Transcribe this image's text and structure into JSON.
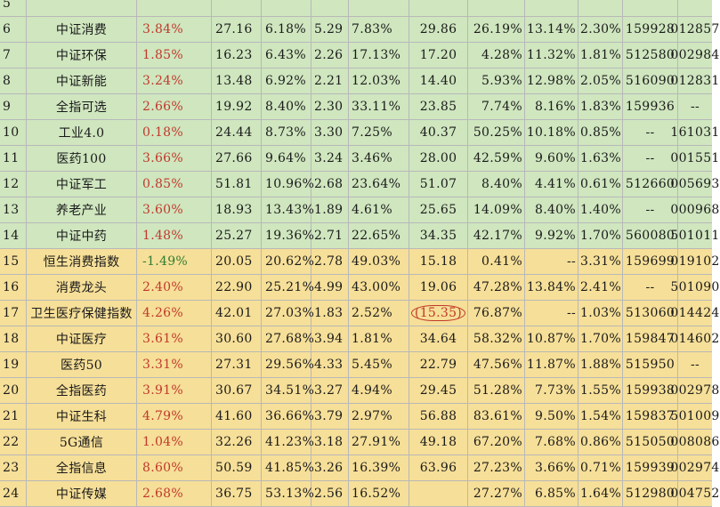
{
  "rows": [
    {
      "idx": "5",
      "name": "",
      "chg": "",
      "c3": "",
      "c4": "",
      "c5": "",
      "c6": "",
      "c7": "",
      "c8": "",
      "c9": "",
      "c10": "",
      "c11": "",
      "c12": "",
      "tone": "green",
      "chg_color": "red"
    },
    {
      "idx": "6",
      "name": "中证消费",
      "chg": "3.84%",
      "c3": "27.16",
      "c4": "6.18%",
      "c5": "5.29",
      "c6": "7.83%",
      "c7": "29.86",
      "c8": "26.19%",
      "c9": "13.14%",
      "c10": "2.30%",
      "c11": "159928",
      "c12": "012857",
      "tone": "green",
      "chg_color": "red"
    },
    {
      "idx": "7",
      "name": "中证环保",
      "chg": "1.85%",
      "c3": "16.23",
      "c4": "6.43%",
      "c5": "2.26",
      "c6": "17.13%",
      "c7": "17.20",
      "c8": "4.28%",
      "c9": "11.32%",
      "c10": "1.81%",
      "c11": "512580",
      "c12": "002984",
      "tone": "green",
      "chg_color": "red"
    },
    {
      "idx": "8",
      "name": "中证新能",
      "chg": "3.24%",
      "c3": "13.48",
      "c4": "6.92%",
      "c5": "2.21",
      "c6": "12.03%",
      "c7": "14.40",
      "c8": "5.93%",
      "c9": "12.98%",
      "c10": "2.05%",
      "c11": "516090",
      "c12": "012831",
      "tone": "green",
      "chg_color": "red"
    },
    {
      "idx": "9",
      "name": "全指可选",
      "chg": "2.66%",
      "c3": "19.92",
      "c4": "8.40%",
      "c5": "2.30",
      "c6": "33.11%",
      "c7": "23.85",
      "c8": "7.74%",
      "c9": "8.16%",
      "c10": "1.83%",
      "c11": "159936",
      "c12": "--",
      "tone": "green",
      "chg_color": "red"
    },
    {
      "idx": "10",
      "name": "工业4.0",
      "chg": "0.18%",
      "c3": "24.44",
      "c4": "8.73%",
      "c5": "3.30",
      "c6": "7.25%",
      "c7": "40.37",
      "c8": "50.25%",
      "c9": "10.18%",
      "c10": "0.85%",
      "c11": "--",
      "c12": "161031",
      "tone": "green",
      "chg_color": "red"
    },
    {
      "idx": "11",
      "name": "医药100",
      "chg": "3.66%",
      "c3": "27.66",
      "c4": "9.64%",
      "c5": "3.24",
      "c6": "3.46%",
      "c7": "28.00",
      "c8": "42.59%",
      "c9": "9.60%",
      "c10": "1.63%",
      "c11": "--",
      "c12": "001551",
      "tone": "green",
      "chg_color": "red"
    },
    {
      "idx": "12",
      "name": "中证军工",
      "chg": "0.85%",
      "c3": "51.81",
      "c4": "10.96%",
      "c5": "2.68",
      "c6": "23.64%",
      "c7": "51.07",
      "c8": "8.40%",
      "c9": "4.41%",
      "c10": "0.61%",
      "c11": "512660",
      "c12": "005693",
      "tone": "green",
      "chg_color": "red"
    },
    {
      "idx": "13",
      "name": "养老产业",
      "chg": "3.60%",
      "c3": "18.93",
      "c4": "13.43%",
      "c5": "1.89",
      "c6": "4.61%",
      "c7": "25.65",
      "c8": "14.09%",
      "c9": "8.40%",
      "c10": "1.40%",
      "c11": "--",
      "c12": "000968",
      "tone": "green",
      "chg_color": "red"
    },
    {
      "idx": "14",
      "name": "中证中药",
      "chg": "1.48%",
      "c3": "25.27",
      "c4": "19.36%",
      "c5": "2.71",
      "c6": "22.65%",
      "c7": "34.35",
      "c8": "42.17%",
      "c9": "9.92%",
      "c10": "1.70%",
      "c11": "560080",
      "c12": "501011",
      "tone": "green",
      "chg_color": "red"
    },
    {
      "idx": "15",
      "name": "恒生消费指数",
      "chg": "-1.49%",
      "c3": "20.05",
      "c4": "20.62%",
      "c5": "2.78",
      "c6": "49.03%",
      "c7": "15.18",
      "c8": "0.41%",
      "c9": "--",
      "c10": "3.31%",
      "c11": "159699",
      "c12": "019102",
      "tone": "yellow",
      "chg_color": "green"
    },
    {
      "idx": "16",
      "name": "消费龙头",
      "chg": "2.40%",
      "c3": "22.90",
      "c4": "25.21%",
      "c5": "4.99",
      "c6": "43.00%",
      "c7": "19.06",
      "c8": "47.28%",
      "c9": "13.84%",
      "c10": "2.41%",
      "c11": "--",
      "c12": "501090",
      "tone": "yellow",
      "chg_color": "red"
    },
    {
      "idx": "17",
      "name": "卫生医疗保健指数",
      "chg": "4.26%",
      "c3": "42.01",
      "c4": "27.03%",
      "c5": "1.83",
      "c6": "2.52%",
      "c7": "(15.35)",
      "c8": "76.87%",
      "c9": "--",
      "c10": "1.03%",
      "c11": "513060",
      "c12": "014424",
      "tone": "yellow",
      "chg_color": "red",
      "circled": true
    },
    {
      "idx": "18",
      "name": "中证医疗",
      "chg": "3.61%",
      "c3": "30.60",
      "c4": "27.68%",
      "c5": "3.94",
      "c6": "1.81%",
      "c7": "34.64",
      "c8": "58.32%",
      "c9": "10.87%",
      "c10": "1.70%",
      "c11": "159847",
      "c12": "014602",
      "tone": "yellow",
      "chg_color": "red"
    },
    {
      "idx": "19",
      "name": "医药50",
      "chg": "3.31%",
      "c3": "27.31",
      "c4": "29.56%",
      "c5": "4.33",
      "c6": "5.45%",
      "c7": "22.79",
      "c8": "47.56%",
      "c9": "11.87%",
      "c10": "1.88%",
      "c11": "515950",
      "c12": "--",
      "tone": "yellow",
      "chg_color": "red"
    },
    {
      "idx": "20",
      "name": "全指医药",
      "chg": "3.91%",
      "c3": "30.67",
      "c4": "34.51%",
      "c5": "3.27",
      "c6": "4.94%",
      "c7": "29.45",
      "c8": "51.28%",
      "c9": "7.73%",
      "c10": "1.55%",
      "c11": "159938",
      "c12": "002978",
      "tone": "yellow",
      "chg_color": "red"
    },
    {
      "idx": "21",
      "name": "中证生科",
      "chg": "4.79%",
      "c3": "41.60",
      "c4": "36.66%",
      "c5": "3.79",
      "c6": "2.97%",
      "c7": "56.88",
      "c8": "83.61%",
      "c9": "9.50%",
      "c10": "1.54%",
      "c11": "159837",
      "c12": "501009",
      "tone": "yellow",
      "chg_color": "red"
    },
    {
      "idx": "22",
      "name": "5G通信",
      "chg": "1.04%",
      "c3": "32.26",
      "c4": "41.23%",
      "c5": "3.18",
      "c6": "27.91%",
      "c7": "49.18",
      "c8": "67.20%",
      "c9": "7.68%",
      "c10": "0.86%",
      "c11": "515050",
      "c12": "008086",
      "tone": "yellow",
      "chg_color": "red"
    },
    {
      "idx": "23",
      "name": "全指信息",
      "chg": "8.60%",
      "c3": "50.59",
      "c4": "41.85%",
      "c5": "3.26",
      "c6": "16.39%",
      "c7": "63.96",
      "c8": "27.23%",
      "c9": "3.66%",
      "c10": "0.71%",
      "c11": "159939",
      "c12": "002974",
      "tone": "yellow",
      "chg_color": "red"
    },
    {
      "idx": "24",
      "name": "中证传媒",
      "chg": "2.68%",
      "c3": "36.75",
      "c4": "53.13%",
      "c5": "2.56",
      "c6": "16.52%",
      "c7": "",
      "c8": "27.27%",
      "c9": "6.85%",
      "c10": "1.64%",
      "c11": "512980",
      "c12": "004752",
      "tone": "yellow",
      "chg_color": "red"
    }
  ]
}
